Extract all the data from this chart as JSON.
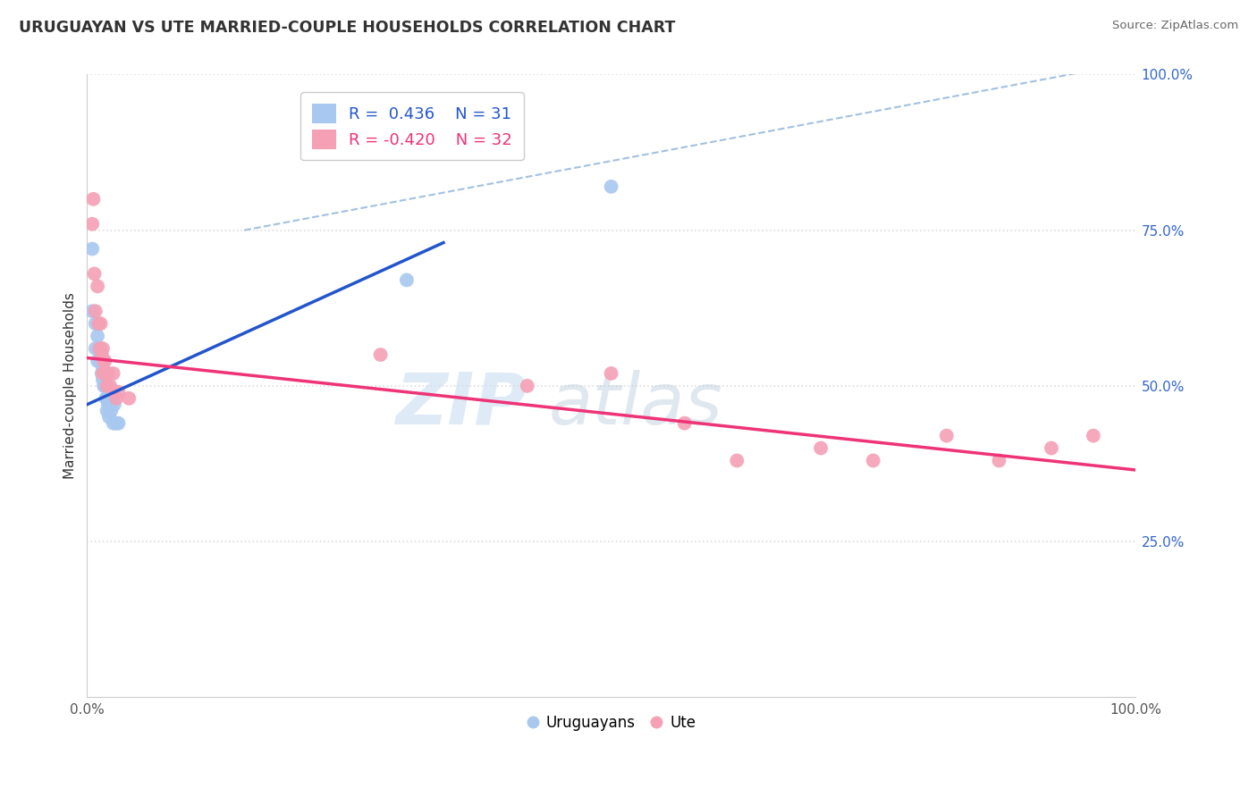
{
  "title": "URUGUAYAN VS UTE MARRIED-COUPLE HOUSEHOLDS CORRELATION CHART",
  "source_text": "Source: ZipAtlas.com",
  "ylabel": "Married-couple Households",
  "xticklabels": [
    "0.0%",
    "100.0%"
  ],
  "yticklabels_right": [
    "25.0%",
    "50.0%",
    "75.0%",
    "100.0%"
  ],
  "xlim": [
    0.0,
    1.0
  ],
  "ylim": [
    0.0,
    1.0
  ],
  "legend_labels": [
    "Uruguayans",
    "Ute"
  ],
  "legend_R": [
    "R =  0.436",
    "R = -0.420"
  ],
  "legend_N": [
    "N = 31",
    "N = 32"
  ],
  "uruguayan_color": "#A8C8F0",
  "ute_color": "#F5A0B5",
  "uruguayan_line_color": "#2255CC",
  "ute_line_color": "#EE3377",
  "diagonal_line_color": "#99BBDD",
  "grid_color": "#DDDDDD",
  "background_color": "#FFFFFF",
  "watermark_color": "#C8DCF0",
  "uruguayan_x": [
    0.005,
    0.005,
    0.008,
    0.008,
    0.01,
    0.01,
    0.012,
    0.013,
    0.013,
    0.014,
    0.014,
    0.015,
    0.015,
    0.016,
    0.016,
    0.017,
    0.017,
    0.018,
    0.018,
    0.019,
    0.019,
    0.02,
    0.021,
    0.022,
    0.023,
    0.025,
    0.026,
    0.028,
    0.03,
    0.305,
    0.5
  ],
  "uruguayan_y": [
    0.62,
    0.72,
    0.56,
    0.6,
    0.54,
    0.58,
    0.56,
    0.55,
    0.54,
    0.52,
    0.54,
    0.53,
    0.51,
    0.52,
    0.5,
    0.52,
    0.5,
    0.5,
    0.48,
    0.48,
    0.46,
    0.47,
    0.45,
    0.48,
    0.46,
    0.44,
    0.47,
    0.44,
    0.44,
    0.67,
    0.82
  ],
  "ute_x": [
    0.005,
    0.006,
    0.007,
    0.008,
    0.01,
    0.011,
    0.012,
    0.013,
    0.014,
    0.015,
    0.015,
    0.016,
    0.017,
    0.018,
    0.019,
    0.02,
    0.022,
    0.025,
    0.028,
    0.03,
    0.04,
    0.28,
    0.42,
    0.5,
    0.57,
    0.62,
    0.7,
    0.75,
    0.82,
    0.87,
    0.92,
    0.96
  ],
  "ute_y": [
    0.76,
    0.8,
    0.68,
    0.62,
    0.66,
    0.6,
    0.56,
    0.6,
    0.55,
    0.56,
    0.52,
    0.54,
    0.54,
    0.52,
    0.5,
    0.52,
    0.5,
    0.52,
    0.48,
    0.49,
    0.48,
    0.55,
    0.5,
    0.52,
    0.44,
    0.38,
    0.4,
    0.38,
    0.42,
    0.38,
    0.4,
    0.42
  ],
  "uruguayan_line": {
    "x0": 0.0,
    "x1": 0.34,
    "y0": 0.47,
    "y1": 0.73
  },
  "ute_line": {
    "x0": 0.0,
    "x1": 1.0,
    "y0": 0.545,
    "y1": 0.365
  },
  "diagonal_line": {
    "x0": 0.15,
    "x1": 1.0,
    "y0": 0.75,
    "y1": 1.02
  }
}
